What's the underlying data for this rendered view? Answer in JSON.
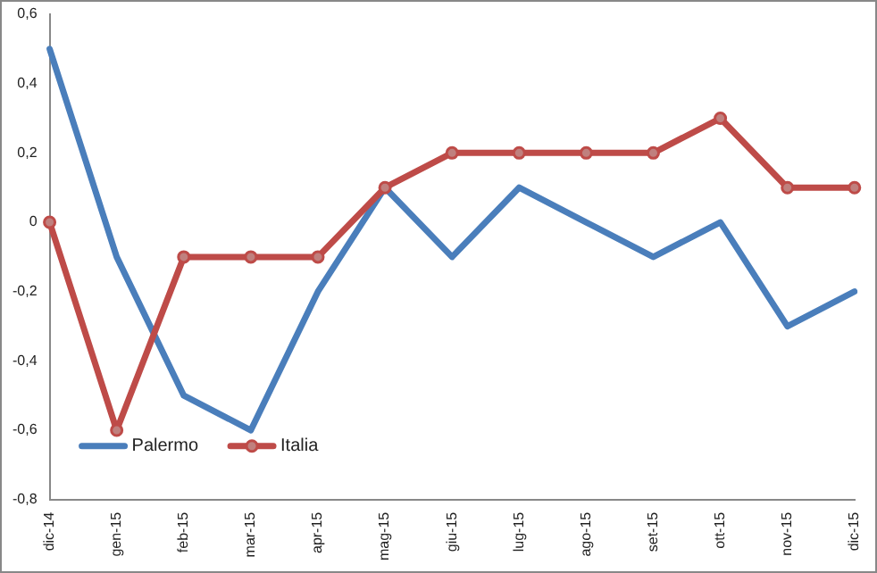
{
  "chart_data": {
    "type": "line",
    "categories": [
      "dic-14",
      "gen-15",
      "feb-15",
      "mar-15",
      "apr-15",
      "mag-15",
      "giu-15",
      "lug-15",
      "ago-15",
      "set-15",
      "ott-15",
      "nov-15",
      "dic-15"
    ],
    "series": [
      {
        "name": "Palermo",
        "color": "#4a7ebb",
        "marker": "none",
        "values": [
          0.5,
          -0.1,
          -0.5,
          -0.6,
          -0.2,
          0.1,
          -0.1,
          0.1,
          0,
          -0.1,
          0,
          -0.3,
          -0.2
        ]
      },
      {
        "name": "Italia",
        "color": "#be4b48",
        "marker": "circle",
        "values": [
          0,
          -0.6,
          -0.1,
          -0.1,
          -0.1,
          0.1,
          0.2,
          0.2,
          0.2,
          0.2,
          0.3,
          0.1,
          0.1
        ]
      }
    ],
    "ylim": [
      -0.8,
      0.6
    ],
    "yticks": [
      {
        "value": -0.8,
        "label": "-0,8"
      },
      {
        "value": -0.6,
        "label": "-0,6"
      },
      {
        "value": -0.4,
        "label": "-0,4"
      },
      {
        "value": -0.2,
        "label": "-0,2"
      },
      {
        "value": 0,
        "label": "0"
      },
      {
        "value": 0.2,
        "label": "0,2"
      },
      {
        "value": 0.4,
        "label": "0,4"
      },
      {
        "value": 0.6,
        "label": "0,6"
      }
    ],
    "grid": false,
    "legend": "bottom left",
    "line_style": "solid"
  }
}
